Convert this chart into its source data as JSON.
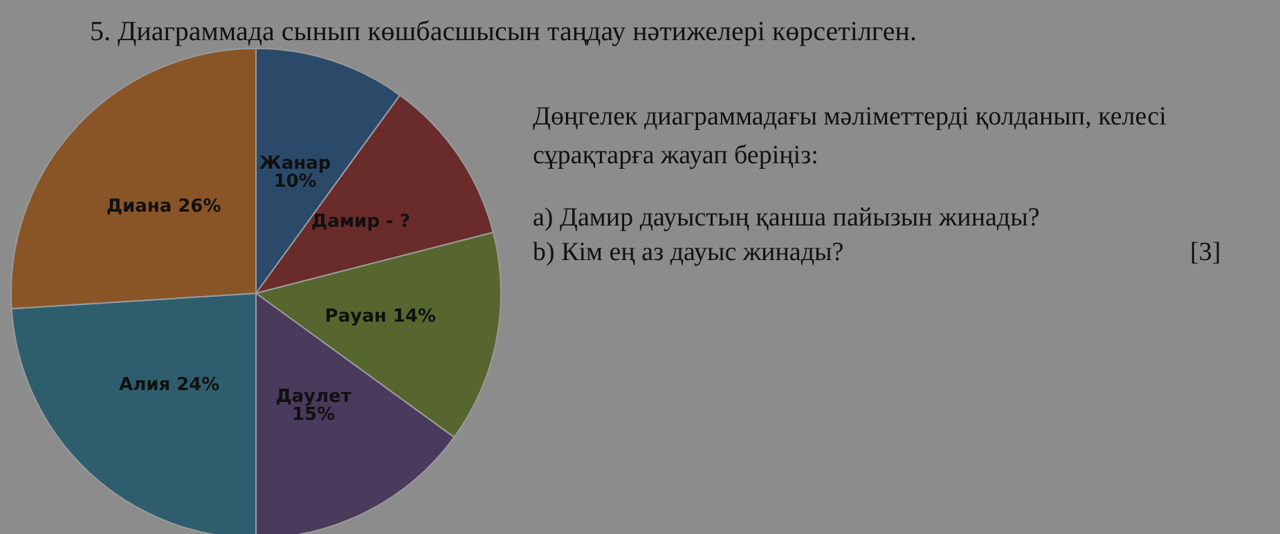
{
  "chart_data": {
    "type": "pie",
    "title": "5. Диаграммада сынып көшбасшысын таңдау нәтижелері көрсетілген.",
    "categories": [
      "Жанар",
      "Дамир",
      "Рауан",
      "Даулет",
      "Алия",
      "Диана"
    ],
    "values": [
      10,
      11,
      14,
      15,
      24,
      26
    ],
    "value_labels": [
      "10%",
      "- ?",
      "14%",
      "15%",
      "24%",
      "26%"
    ],
    "colors": [
      "#2b4a6a",
      "#6a2b2b",
      "#56662e",
      "#4a3a5c",
      "#2e5e6e",
      "#8a5526"
    ],
    "annotations": [
      "Дөңгелек диаграммадағы мәліметтерді қолданып, келесі",
      "сұрақтарға жауап беріңіз:",
      "a) Дамир дауыстың қанша пайызын жинады?",
      "b) Кім ең аз дауыс жинады?",
      "[3]"
    ]
  }
}
